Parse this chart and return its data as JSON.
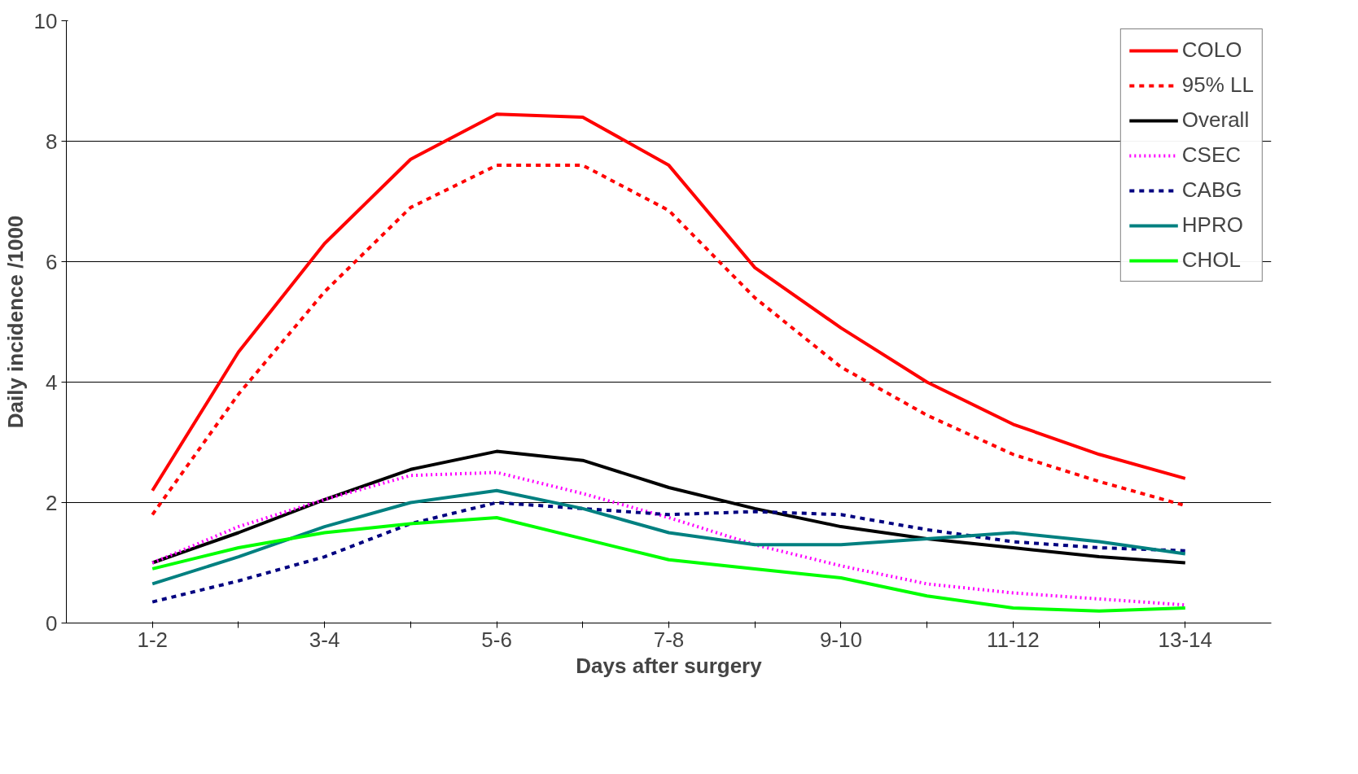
{
  "chart_data": {
    "type": "line",
    "xlabel": "Days after surgery",
    "ylabel": "Daily incidence /1000",
    "categories": [
      "1-2",
      null,
      "3-4",
      null,
      "5-6",
      null,
      "7-8",
      null,
      "9-10",
      null,
      "11-12",
      null,
      "13-14"
    ],
    "ylim": [
      0,
      10
    ],
    "yticks": [
      0,
      2,
      4,
      6,
      8,
      10
    ],
    "grid": "y",
    "legend": "top right",
    "series": [
      {
        "name": "COLO",
        "color": "#ff0000",
        "line_style": "solid",
        "values": [
          2.2,
          4.5,
          6.3,
          7.7,
          8.45,
          8.4,
          7.6,
          5.9,
          4.9,
          4.0,
          3.3,
          2.8,
          2.4
        ]
      },
      {
        "name": "95% LL",
        "color": "#ff0000",
        "line_style": "dashed",
        "values": [
          1.8,
          3.8,
          5.5,
          6.9,
          7.6,
          7.6,
          6.85,
          5.4,
          4.25,
          3.45,
          2.8,
          2.35,
          1.95
        ]
      },
      {
        "name": "Overall",
        "color": "#000000",
        "line_style": "solid",
        "values": [
          1.0,
          1.5,
          2.05,
          2.55,
          2.85,
          2.7,
          2.25,
          1.9,
          1.6,
          1.4,
          1.25,
          1.1,
          1.0
        ]
      },
      {
        "name": "CSEC",
        "color": "#ff00ff",
        "line_style": "dotted",
        "values": [
          1.0,
          1.6,
          2.05,
          2.45,
          2.5,
          2.15,
          1.75,
          1.3,
          0.95,
          0.65,
          0.5,
          0.4,
          0.3
        ]
      },
      {
        "name": "CABG",
        "color": "#000080",
        "line_style": "dashed",
        "values": [
          0.35,
          0.7,
          1.1,
          1.65,
          2.0,
          1.9,
          1.8,
          1.85,
          1.8,
          1.55,
          1.35,
          1.25,
          1.2
        ]
      },
      {
        "name": "HPRO",
        "color": "#008080",
        "line_style": "solid",
        "values": [
          0.65,
          1.1,
          1.6,
          2.0,
          2.2,
          1.9,
          1.5,
          1.3,
          1.3,
          1.4,
          1.5,
          1.35,
          1.15
        ]
      },
      {
        "name": "CHOL",
        "color": "#00ff00",
        "line_style": "solid",
        "values": [
          0.9,
          1.25,
          1.5,
          1.65,
          1.75,
          1.4,
          1.05,
          0.9,
          0.75,
          0.45,
          0.25,
          0.2,
          0.25
        ]
      }
    ]
  }
}
